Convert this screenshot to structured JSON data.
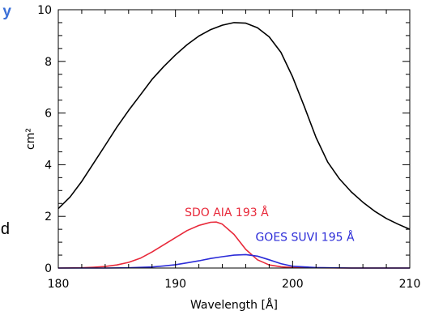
{
  "fragments": {
    "top_right_char": "y",
    "mid_right_char": "d"
  },
  "chart_data": {
    "type": "line",
    "xlabel": "Wavelength [Å]",
    "ylabel": "cm²",
    "xlim": [
      180,
      210
    ],
    "ylim": [
      0,
      10
    ],
    "xticks": [
      180,
      190,
      200,
      210
    ],
    "yticks": [
      0,
      2,
      4,
      6,
      8,
      10
    ],
    "grid": false,
    "series": [
      {
        "name": "",
        "color": "#000000",
        "x": [
          180,
          181,
          182,
          183,
          184,
          185,
          186,
          187,
          188,
          189,
          190,
          191,
          192,
          193,
          194,
          195,
          196,
          197,
          198,
          199,
          200,
          201,
          202,
          203,
          204,
          205,
          206,
          207,
          208,
          209,
          210
        ],
        "y": [
          2.3,
          2.75,
          3.35,
          4.05,
          4.75,
          5.45,
          6.1,
          6.7,
          7.3,
          7.8,
          8.25,
          8.65,
          8.98,
          9.23,
          9.4,
          9.5,
          9.48,
          9.3,
          8.95,
          8.35,
          7.4,
          6.25,
          5.05,
          4.1,
          3.45,
          2.95,
          2.55,
          2.2,
          1.92,
          1.7,
          1.5
        ]
      },
      {
        "name": "SDO AIA 193 Å",
        "color": "#e8293a",
        "x": [
          180,
          182,
          183,
          184,
          185,
          186,
          187,
          188,
          189,
          190,
          191,
          192,
          193,
          193.5,
          194,
          195,
          196,
          197,
          198,
          199,
          200,
          202,
          205,
          210
        ],
        "y": [
          0,
          0.01,
          0.03,
          0.06,
          0.12,
          0.22,
          0.38,
          0.62,
          0.9,
          1.18,
          1.45,
          1.65,
          1.77,
          1.78,
          1.7,
          1.3,
          0.72,
          0.32,
          0.12,
          0.05,
          0.02,
          0.01,
          0,
          0
        ]
      },
      {
        "name": "GOES SUVI 195 Å",
        "color": "#2c2cd8",
        "x": [
          180,
          184,
          186,
          188,
          189,
          190,
          191,
          192,
          193,
          194,
          195,
          196,
          197,
          198,
          199,
          200,
          202,
          205,
          210
        ],
        "y": [
          0,
          0,
          0.01,
          0.04,
          0.08,
          0.13,
          0.2,
          0.28,
          0.37,
          0.44,
          0.5,
          0.52,
          0.46,
          0.32,
          0.17,
          0.07,
          0.02,
          0,
          0
        ]
      }
    ]
  }
}
